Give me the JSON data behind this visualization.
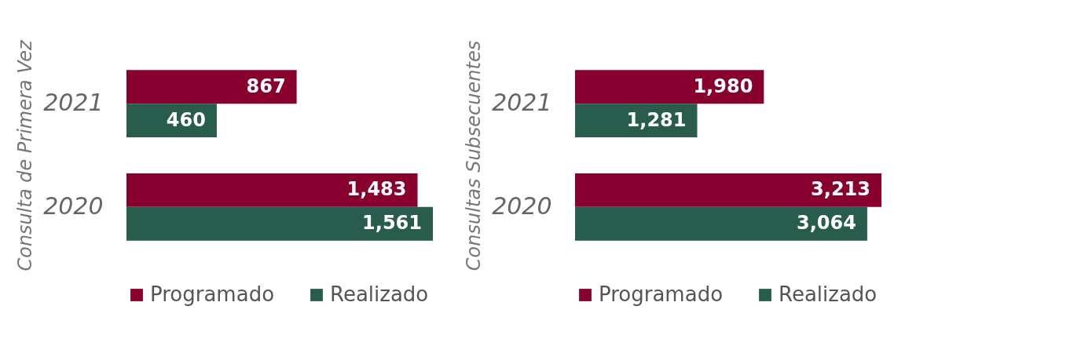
{
  "chart_data": [
    {
      "type": "bar",
      "orientation": "horizontal",
      "ylabel": "Consulta de Primera Vez",
      "categories": [
        "2021",
        "2020"
      ],
      "legend": "bottom",
      "series": [
        {
          "name": "Programado",
          "color": "#870030",
          "values": [
            867,
            1483
          ],
          "value_labels": [
            "867",
            "1,483"
          ]
        },
        {
          "name": "Realizado",
          "color": "#285c4d",
          "values": [
            460,
            1561
          ],
          "value_labels": [
            "460",
            "1,561"
          ]
        }
      ]
    },
    {
      "type": "bar",
      "orientation": "horizontal",
      "ylabel": "Consultas Subsecuentes",
      "categories": [
        "2021",
        "2020"
      ],
      "legend": "bottom",
      "series": [
        {
          "name": "Programado",
          "color": "#870030",
          "values": [
            1980,
            3213
          ],
          "value_labels": [
            "1,980",
            "3,213"
          ]
        },
        {
          "name": "Realizado",
          "color": "#285c4d",
          "values": [
            1281,
            3064
          ],
          "value_labels": [
            "1,281",
            "3,064"
          ]
        }
      ]
    }
  ]
}
